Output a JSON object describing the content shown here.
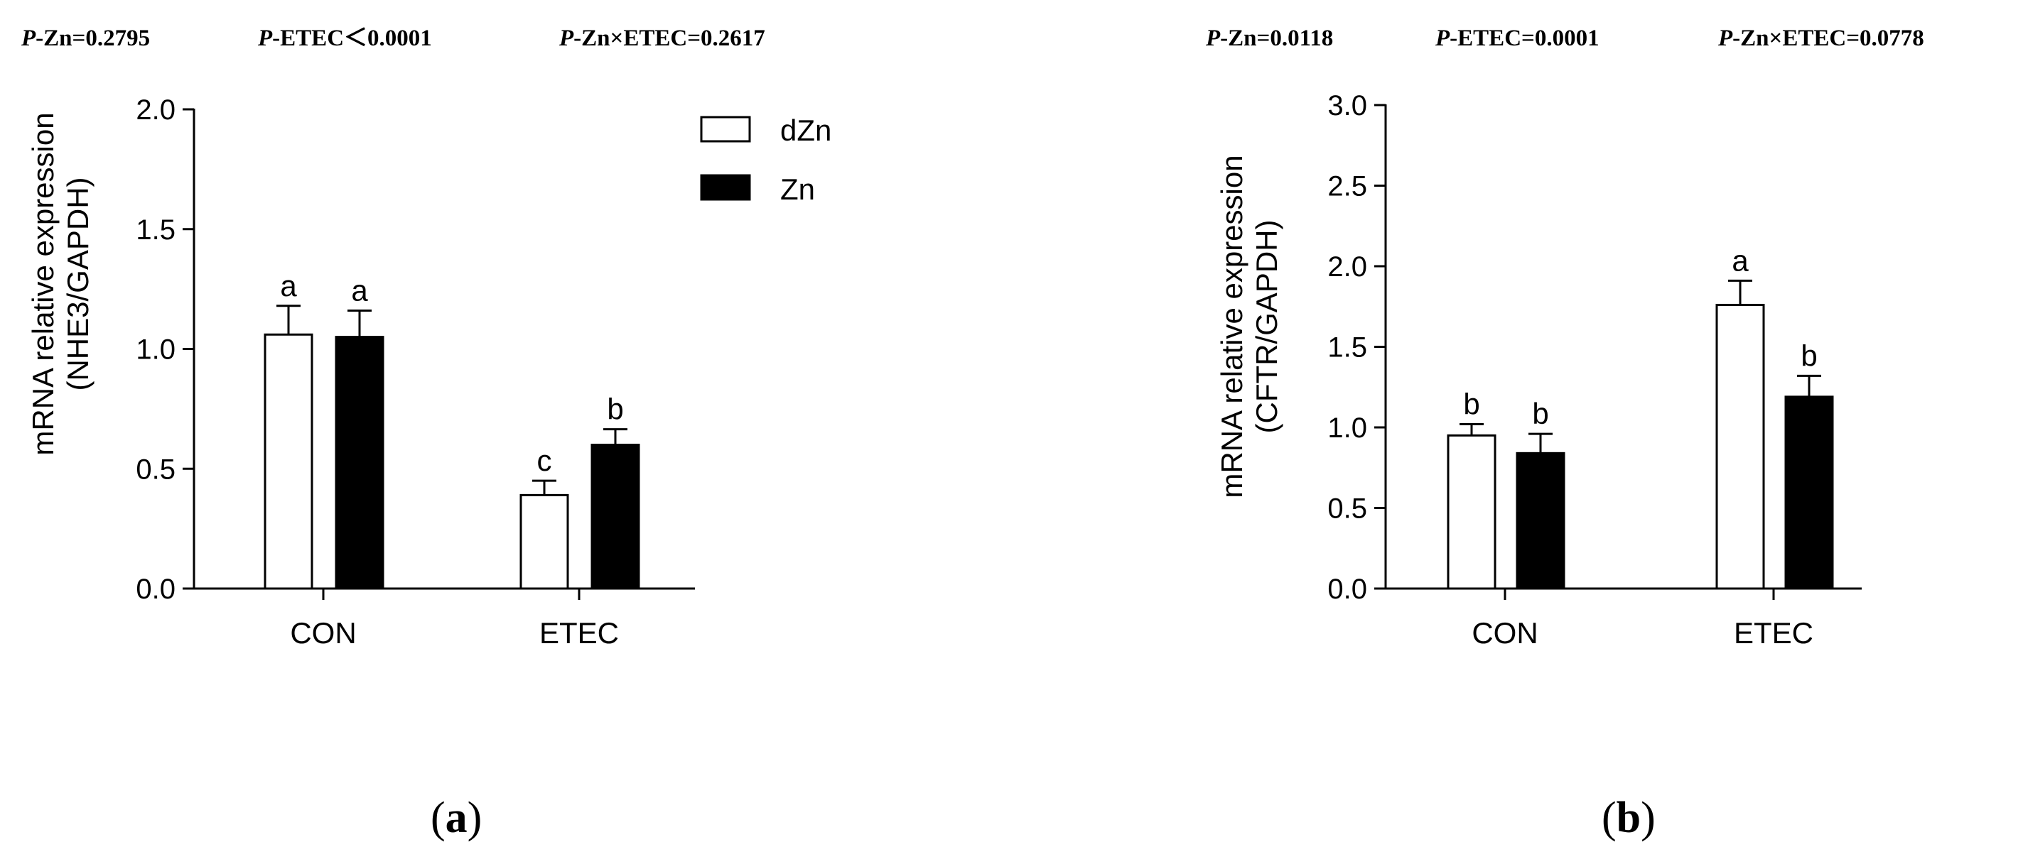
{
  "chart_data": [
    {
      "type": "bar",
      "panel": "a",
      "stats": [
        {
          "key": "P",
          "label": "-Zn=0.2795"
        },
        {
          "key": "P",
          "label": "-ETEC＜0.0001"
        },
        {
          "key": "P",
          "label": "-Zn×ETEC=0.2617"
        }
      ],
      "ylabel": "mRNA relative expression",
      "ylabel2": "(NHE3/GAPDH)",
      "ylim": [
        0,
        2.0
      ],
      "yticks": [
        "0.0",
        "0.5",
        "1.0",
        "1.5",
        "2.0"
      ],
      "categories": [
        "CON",
        "ETEC"
      ],
      "series": [
        {
          "name": "dZn",
          "fill": "#ffffff",
          "values": [
            1.06,
            0.39
          ],
          "errors": [
            0.12,
            0.06
          ],
          "letters": [
            "a",
            "c"
          ]
        },
        {
          "name": "Zn",
          "fill": "#000000",
          "values": [
            1.05,
            0.6
          ],
          "errors": [
            0.11,
            0.065
          ],
          "letters": [
            "a",
            "b"
          ]
        }
      ],
      "legend": "top-right"
    },
    {
      "type": "bar",
      "panel": "b",
      "stats": [
        {
          "key": "P",
          "label": "-Zn=0.0118"
        },
        {
          "key": "P",
          "label": "-ETEC=0.0001"
        },
        {
          "key": "P",
          "label": "-Zn×ETEC=0.0778"
        }
      ],
      "ylabel": "mRNA relative expression",
      "ylabel2": "(CFTR/GAPDH)",
      "ylim": [
        0,
        3.0
      ],
      "yticks": [
        "0.0",
        "0.5",
        "1.0",
        "1.5",
        "2.0",
        "2.5",
        "3.0"
      ],
      "categories": [
        "CON",
        "ETEC"
      ],
      "series": [
        {
          "name": "dZn",
          "fill": "#ffffff",
          "values": [
            0.95,
            1.76
          ],
          "errors": [
            0.07,
            0.15
          ],
          "letters": [
            "b",
            "a"
          ]
        },
        {
          "name": "Zn",
          "fill": "#000000",
          "values": [
            0.84,
            1.19
          ],
          "errors": [
            0.12,
            0.13
          ],
          "letters": [
            "b",
            "b"
          ]
        }
      ]
    }
  ]
}
